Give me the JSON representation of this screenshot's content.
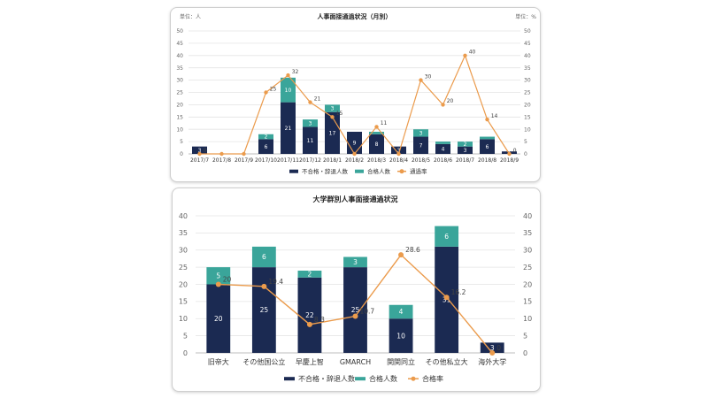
{
  "colors": {
    "navy": "#1b2a52",
    "teal": "#3aa59a",
    "orange": "#eb9b4c",
    "grid": "#e4e4e4",
    "axisText": "#666666"
  },
  "chart_data": [
    {
      "type": "bar",
      "stacked": true,
      "title": "人事面接通過状況（月別）",
      "left_unit": "単位：人",
      "right_unit": "単位：%",
      "categories": [
        "2017/7",
        "2017/8",
        "2017/9",
        "2017/10",
        "2017/11",
        "2017/12",
        "2018/1",
        "2018/2",
        "2018/3",
        "2018/4",
        "2018/5",
        "2018/6",
        "2018/7",
        "2018/8",
        "2018/9"
      ],
      "ylim": [
        0,
        50
      ],
      "yticks": [
        0,
        5,
        10,
        15,
        20,
        25,
        30,
        35,
        40,
        45,
        50
      ],
      "y2lim": [
        0,
        50
      ],
      "series": [
        {
          "name": "不合格・辞退人数",
          "kind": "bar",
          "values": [
            3,
            0,
            0,
            6,
            21,
            11,
            17,
            9,
            8,
            3,
            7,
            4,
            3,
            6,
            1
          ],
          "labels": [
            "3",
            "",
            "",
            "6",
            "21",
            "11",
            "17",
            "9",
            "8",
            "3",
            "7",
            "4",
            "3",
            "6",
            "1"
          ]
        },
        {
          "name": "合格人数",
          "kind": "bar",
          "values": [
            0,
            0,
            0,
            2,
            10,
            3,
            3,
            0,
            1,
            0,
            3,
            1,
            2,
            1,
            0
          ],
          "labels": [
            "",
            "",
            "",
            "2",
            "10",
            "3",
            "3",
            "",
            "",
            "",
            "3",
            "",
            "2",
            "",
            ""
          ]
        },
        {
          "name": "通過率",
          "kind": "line",
          "axis": "right",
          "values": [
            0,
            0,
            0,
            25,
            32,
            21,
            15,
            0,
            11,
            0,
            30,
            20,
            40,
            14,
            0
          ],
          "labels": [
            "0",
            "",
            "",
            "25",
            "32",
            "21",
            "15",
            "",
            "11",
            "",
            "30",
            "20",
            "40",
            "14",
            "0"
          ]
        }
      ],
      "legend": [
        "不合格・辞退人数",
        "合格人数",
        "通過率"
      ],
      "legend_position": "bottom"
    },
    {
      "type": "bar",
      "stacked": true,
      "title": "大学群別人事面接通過状況",
      "categories": [
        "旧帝大",
        "その他国公立",
        "早慶上智",
        "GMARCH",
        "関関同立",
        "その他私立大",
        "海外大学"
      ],
      "ylim": [
        0,
        40
      ],
      "yticks": [
        0,
        5,
        10,
        15,
        20,
        25,
        30,
        35,
        40
      ],
      "y2lim": [
        0,
        40
      ],
      "series": [
        {
          "name": "不合格・辞退人数",
          "kind": "bar",
          "values": [
            20,
            25,
            22,
            25,
            10,
            31,
            3
          ],
          "labels": [
            "20",
            "25",
            "22",
            "25",
            "10",
            "31",
            "3"
          ]
        },
        {
          "name": "合格人数",
          "kind": "bar",
          "values": [
            5,
            6,
            2,
            3,
            4,
            6,
            0
          ],
          "labels": [
            "5",
            "6",
            "2",
            "3",
            "4",
            "6",
            ""
          ]
        },
        {
          "name": "合格率",
          "kind": "line",
          "axis": "right",
          "values": [
            20,
            19.4,
            8.3,
            10.7,
            28.6,
            16.2,
            0
          ],
          "labels": [
            "20",
            "19.4",
            "8.3",
            "10.7",
            "28.6",
            "16.2",
            "0"
          ]
        }
      ],
      "legend": [
        "不合格・辞退人数",
        "合格人数",
        "合格率"
      ],
      "legend_position": "bottom"
    }
  ]
}
